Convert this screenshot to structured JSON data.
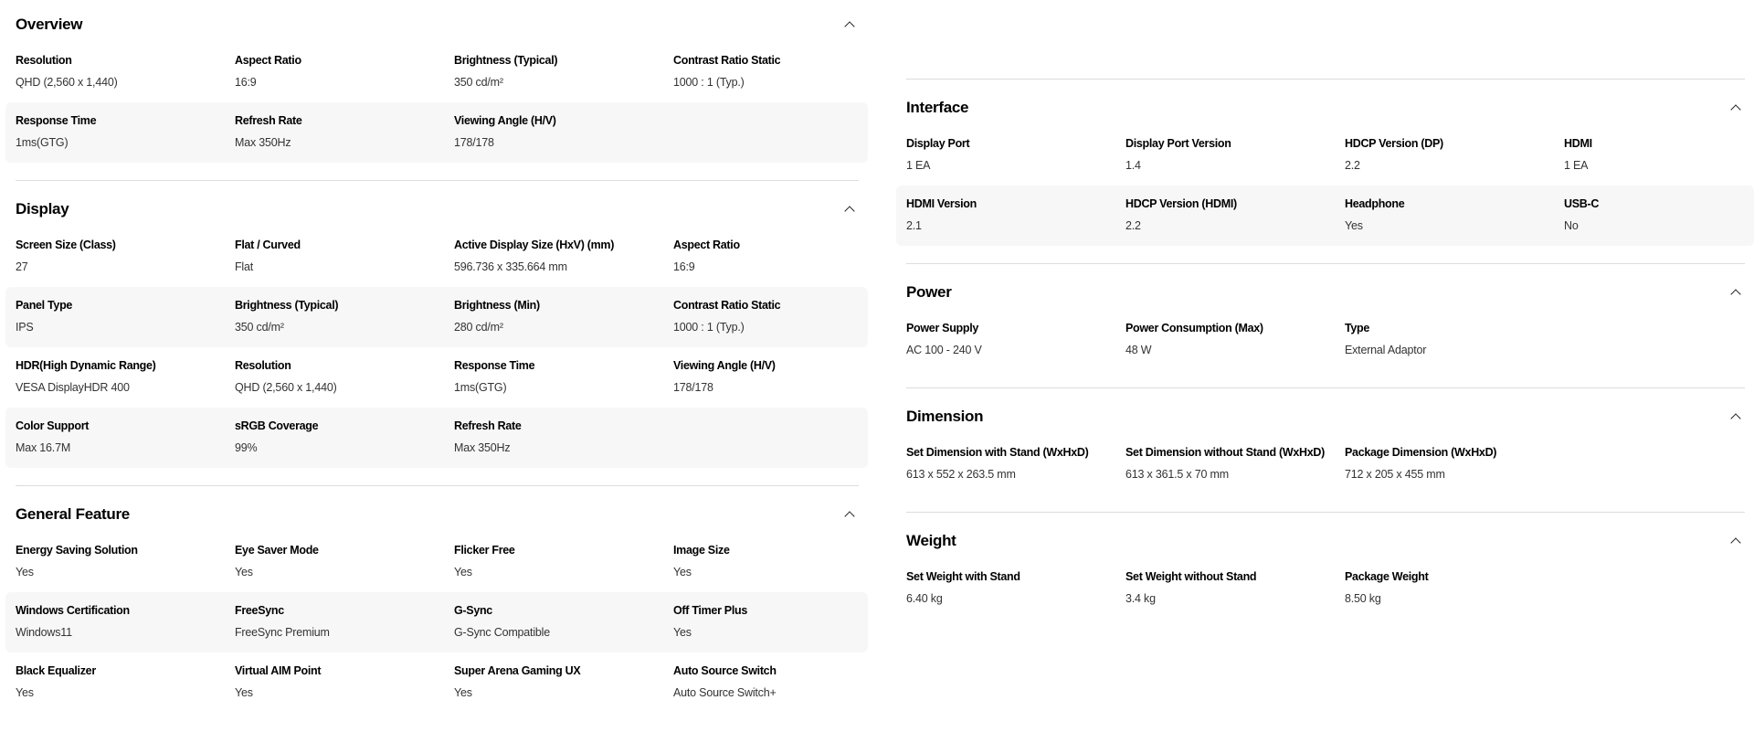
{
  "left": [
    {
      "title": "Overview",
      "rows": [
        [
          [
            "Resolution",
            "QHD (2,560 x 1,440)"
          ],
          [
            "Aspect Ratio",
            "16:9"
          ],
          [
            "Brightness (Typical)",
            "350 cd/m²"
          ],
          [
            "Contrast Ratio Static",
            "1000 : 1 (Typ.)"
          ]
        ],
        [
          [
            "Response Time",
            "1ms(GTG)"
          ],
          [
            "Refresh Rate",
            "Max 350Hz"
          ],
          [
            "Viewing Angle (H/V)",
            "178/178"
          ]
        ]
      ]
    },
    {
      "title": "Display",
      "rows": [
        [
          [
            "Screen Size (Class)",
            "27"
          ],
          [
            "Flat / Curved",
            "Flat"
          ],
          [
            "Active Display Size (HxV) (mm)",
            "596.736 x 335.664 mm"
          ],
          [
            "Aspect Ratio",
            "16:9"
          ]
        ],
        [
          [
            "Panel Type",
            "IPS"
          ],
          [
            "Brightness (Typical)",
            "350 cd/m²"
          ],
          [
            "Brightness (Min)",
            "280 cd/m²"
          ],
          [
            "Contrast Ratio Static",
            "1000 : 1 (Typ.)"
          ]
        ],
        [
          [
            "HDR(High Dynamic Range)",
            "VESA DisplayHDR 400"
          ],
          [
            "Resolution",
            "QHD (2,560 x 1,440)"
          ],
          [
            "Response Time",
            "1ms(GTG)"
          ],
          [
            "Viewing Angle (H/V)",
            "178/178"
          ]
        ],
        [
          [
            "Color Support",
            "Max 16.7M"
          ],
          [
            "sRGB Coverage",
            "99%"
          ],
          [
            "Refresh Rate",
            "Max 350Hz"
          ]
        ]
      ]
    },
    {
      "title": "General Feature",
      "rows": [
        [
          [
            "Energy Saving Solution",
            "Yes"
          ],
          [
            "Eye Saver Mode",
            "Yes"
          ],
          [
            "Flicker Free",
            "Yes"
          ],
          [
            "Image Size",
            "Yes"
          ]
        ],
        [
          [
            "Windows Certification",
            "Windows11"
          ],
          [
            "FreeSync",
            "FreeSync Premium"
          ],
          [
            "G-Sync",
            "G-Sync Compatible"
          ],
          [
            "Off Timer Plus",
            "Yes"
          ]
        ],
        [
          [
            "Black Equalizer",
            "Yes"
          ],
          [
            "Virtual AIM Point",
            "Yes"
          ],
          [
            "Super Arena Gaming UX",
            "Yes"
          ],
          [
            "Auto Source Switch",
            "Auto Source Switch+"
          ]
        ]
      ]
    }
  ],
  "right": [
    {
      "title": "Interface",
      "rows": [
        [
          [
            "Display Port",
            "1 EA"
          ],
          [
            "Display Port Version",
            "1.4"
          ],
          [
            "HDCP Version (DP)",
            "2.2"
          ],
          [
            "HDMI",
            "1 EA"
          ]
        ],
        [
          [
            "HDMI Version",
            "2.1"
          ],
          [
            "HDCP Version (HDMI)",
            "2.2"
          ],
          [
            "Headphone",
            "Yes"
          ],
          [
            "USB-C",
            "No"
          ]
        ]
      ]
    },
    {
      "title": "Power",
      "rows": [
        [
          [
            "Power Supply",
            "AC 100 - 240 V"
          ],
          [
            "Power Consumption (Max)",
            "48 W"
          ],
          [
            "Type",
            "External Adaptor"
          ]
        ]
      ]
    },
    {
      "title": "Dimension",
      "rows": [
        [
          [
            "Set Dimension with Stand (WxHxD)",
            "613 x 552 x 263.5 mm"
          ],
          [
            "Set Dimension without Stand (WxHxD)",
            "613 x 361.5 x 70 mm"
          ],
          [
            "Package Dimension (WxHxD)",
            "712 x 205 x 455 mm"
          ]
        ]
      ]
    },
    {
      "title": "Weight",
      "rows": [
        [
          [
            "Set Weight with Stand",
            "6.40 kg"
          ],
          [
            "Set Weight without Stand",
            "3.4 kg"
          ],
          [
            "Package Weight",
            "8.50 kg"
          ]
        ]
      ]
    }
  ],
  "icons": {
    "collapse": "chevron-up-icon"
  },
  "colors": {
    "row_alt_bg": "#f7f7f7",
    "divider": "#dcdcdc"
  }
}
